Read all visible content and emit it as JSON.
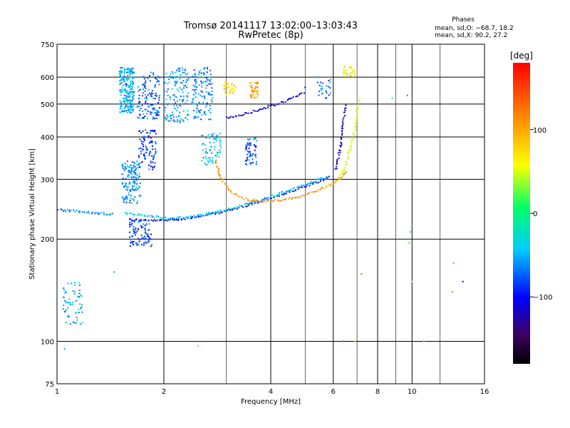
{
  "chart_data": {
    "type": "scatter",
    "title": "Tromsø 20141117 13:02:00–13:03:43",
    "subtitle": "RwPretec (8p)",
    "xlabel": "Frequency [MHz]",
    "ylabel": "Stationary phase Virtual Height [km]",
    "x_scale": "log",
    "y_scale": "log",
    "xlim": [
      1,
      16
    ],
    "ylim": [
      75,
      750
    ],
    "x_ticks": [
      1,
      2,
      4,
      6,
      8,
      10,
      16
    ],
    "x_tick_labels": [
      "1",
      "2",
      "4",
      "6",
      "8",
      "10",
      "16"
    ],
    "x_minor_grid": [
      3,
      5,
      7,
      9,
      12
    ],
    "y_ticks": [
      75,
      100,
      200,
      300,
      400,
      500,
      600,
      750
    ],
    "y_tick_labels": [
      "75",
      "100",
      "200",
      "300",
      "400",
      "500",
      "600",
      "750"
    ],
    "grid": true,
    "stats": {
      "heading": "Phases",
      "line_o": "mean, sd,O: −68.7, 18.2",
      "line_x": "mean, sd,X:  90.2, 27.2"
    },
    "colorbar": {
      "label": "[deg]",
      "range": [
        -180,
        180
      ],
      "ticks": [
        100,
        0,
        -100
      ],
      "tick_labels": [
        "100",
        "0",
        "−100"
      ],
      "colormap": "rainbow"
    },
    "traces": [
      {
        "kind": "curve",
        "phase": -100,
        "x": [
          1.6,
          1.8,
          2.0,
          2.3,
          2.7,
          3.2,
          3.8,
          4.5,
          5.3,
          5.9
        ],
        "y": [
          228,
          227,
          227,
          230,
          236,
          246,
          260,
          275,
          292,
          305
        ]
      },
      {
        "kind": "curve",
        "phase": -40,
        "x": [
          1.55,
          1.7,
          1.9,
          2.1,
          2.4,
          2.8,
          3.3,
          3.9,
          4.5,
          5.1,
          5.8
        ],
        "y": [
          238,
          236,
          233,
          230,
          233,
          240,
          251,
          264,
          278,
          292,
          305
        ]
      },
      {
        "kind": "curve",
        "phase": 110,
        "x": [
          2.8,
          2.9,
          3.1,
          3.4,
          3.8,
          4.3,
          4.9,
          5.5,
          6.1,
          6.6
        ],
        "y": [
          340,
          300,
          275,
          262,
          258,
          260,
          268,
          280,
          295,
          318
        ]
      },
      {
        "kind": "curve",
        "phase": 50,
        "x": [
          6.2,
          6.5,
          6.7,
          6.9,
          7.0,
          7.1
        ],
        "y": [
          300,
          330,
          370,
          420,
          470,
          520
        ]
      },
      {
        "kind": "curve",
        "phase": -120,
        "x": [
          6.1,
          6.3,
          6.4,
          6.5
        ],
        "y": [
          320,
          380,
          440,
          500
        ]
      },
      {
        "kind": "curve",
        "phase": -110,
        "x": [
          3.0,
          3.4,
          3.8,
          4.2,
          4.6,
          5.0
        ],
        "y": [
          455,
          468,
          485,
          500,
          520,
          540
        ]
      },
      {
        "kind": "curve",
        "phase": -60,
        "x": [
          1.0,
          1.05,
          1.1,
          1.2,
          1.35,
          1.45
        ],
        "y": [
          245,
          243,
          242,
          240,
          238,
          236
        ]
      },
      {
        "kind": "cluster",
        "phase": -50,
        "x": [
          1.5,
          1.65
        ],
        "y": [
          470,
          640
        ],
        "n": 220
      },
      {
        "kind": "cluster",
        "phase": -75,
        "x": [
          1.68,
          1.95
        ],
        "y": [
          450,
          620
        ],
        "n": 120
      },
      {
        "kind": "cluster",
        "phase": -55,
        "x": [
          2.0,
          2.35
        ],
        "y": [
          440,
          640
        ],
        "n": 140
      },
      {
        "kind": "cluster",
        "phase": -65,
        "x": [
          2.4,
          2.75
        ],
        "y": [
          450,
          640
        ],
        "n": 120
      },
      {
        "kind": "cluster",
        "phase": -60,
        "x": [
          1.52,
          1.72
        ],
        "y": [
          255,
          340
        ],
        "n": 140
      },
      {
        "kind": "cluster",
        "phase": -90,
        "x": [
          1.7,
          1.9
        ],
        "y": [
          320,
          420
        ],
        "n": 90
      },
      {
        "kind": "cluster",
        "phase": -80,
        "x": [
          1.6,
          1.85
        ],
        "y": [
          190,
          230
        ],
        "n": 90
      },
      {
        "kind": "cluster",
        "phase": -45,
        "x": [
          2.55,
          2.9
        ],
        "y": [
          330,
          410
        ],
        "n": 70
      },
      {
        "kind": "cluster",
        "phase": -80,
        "x": [
          3.4,
          3.65
        ],
        "y": [
          330,
          400
        ],
        "n": 60
      },
      {
        "kind": "cluster",
        "phase": 100,
        "x": [
          3.5,
          3.7
        ],
        "y": [
          520,
          580
        ],
        "n": 40
      },
      {
        "kind": "cluster",
        "phase": 70,
        "x": [
          2.95,
          3.2
        ],
        "y": [
          530,
          580
        ],
        "n": 35
      },
      {
        "kind": "cluster",
        "phase": -50,
        "x": [
          1.04,
          1.18
        ],
        "y": [
          110,
          150
        ],
        "n": 60
      },
      {
        "kind": "cluster",
        "phase": 65,
        "x": [
          6.4,
          6.9
        ],
        "y": [
          600,
          650
        ],
        "n": 30
      },
      {
        "kind": "cluster",
        "phase": -70,
        "x": [
          5.4,
          5.9
        ],
        "y": [
          520,
          600
        ],
        "n": 25
      },
      {
        "kind": "scatter",
        "phase": 0,
        "x": [
          1.45,
          9.8,
          9.9,
          13.1,
          13.9,
          8.8,
          9.7,
          10.8,
          13.0,
          2.5,
          1.05,
          6.4,
          6.9,
          7.2,
          10.0,
          5.0
        ],
        "y": [
          160,
          195,
          210,
          170,
          150,
          520,
          530,
          100,
          140,
          97,
          95,
          100,
          100,
          158,
          150,
          560
        ]
      }
    ]
  }
}
